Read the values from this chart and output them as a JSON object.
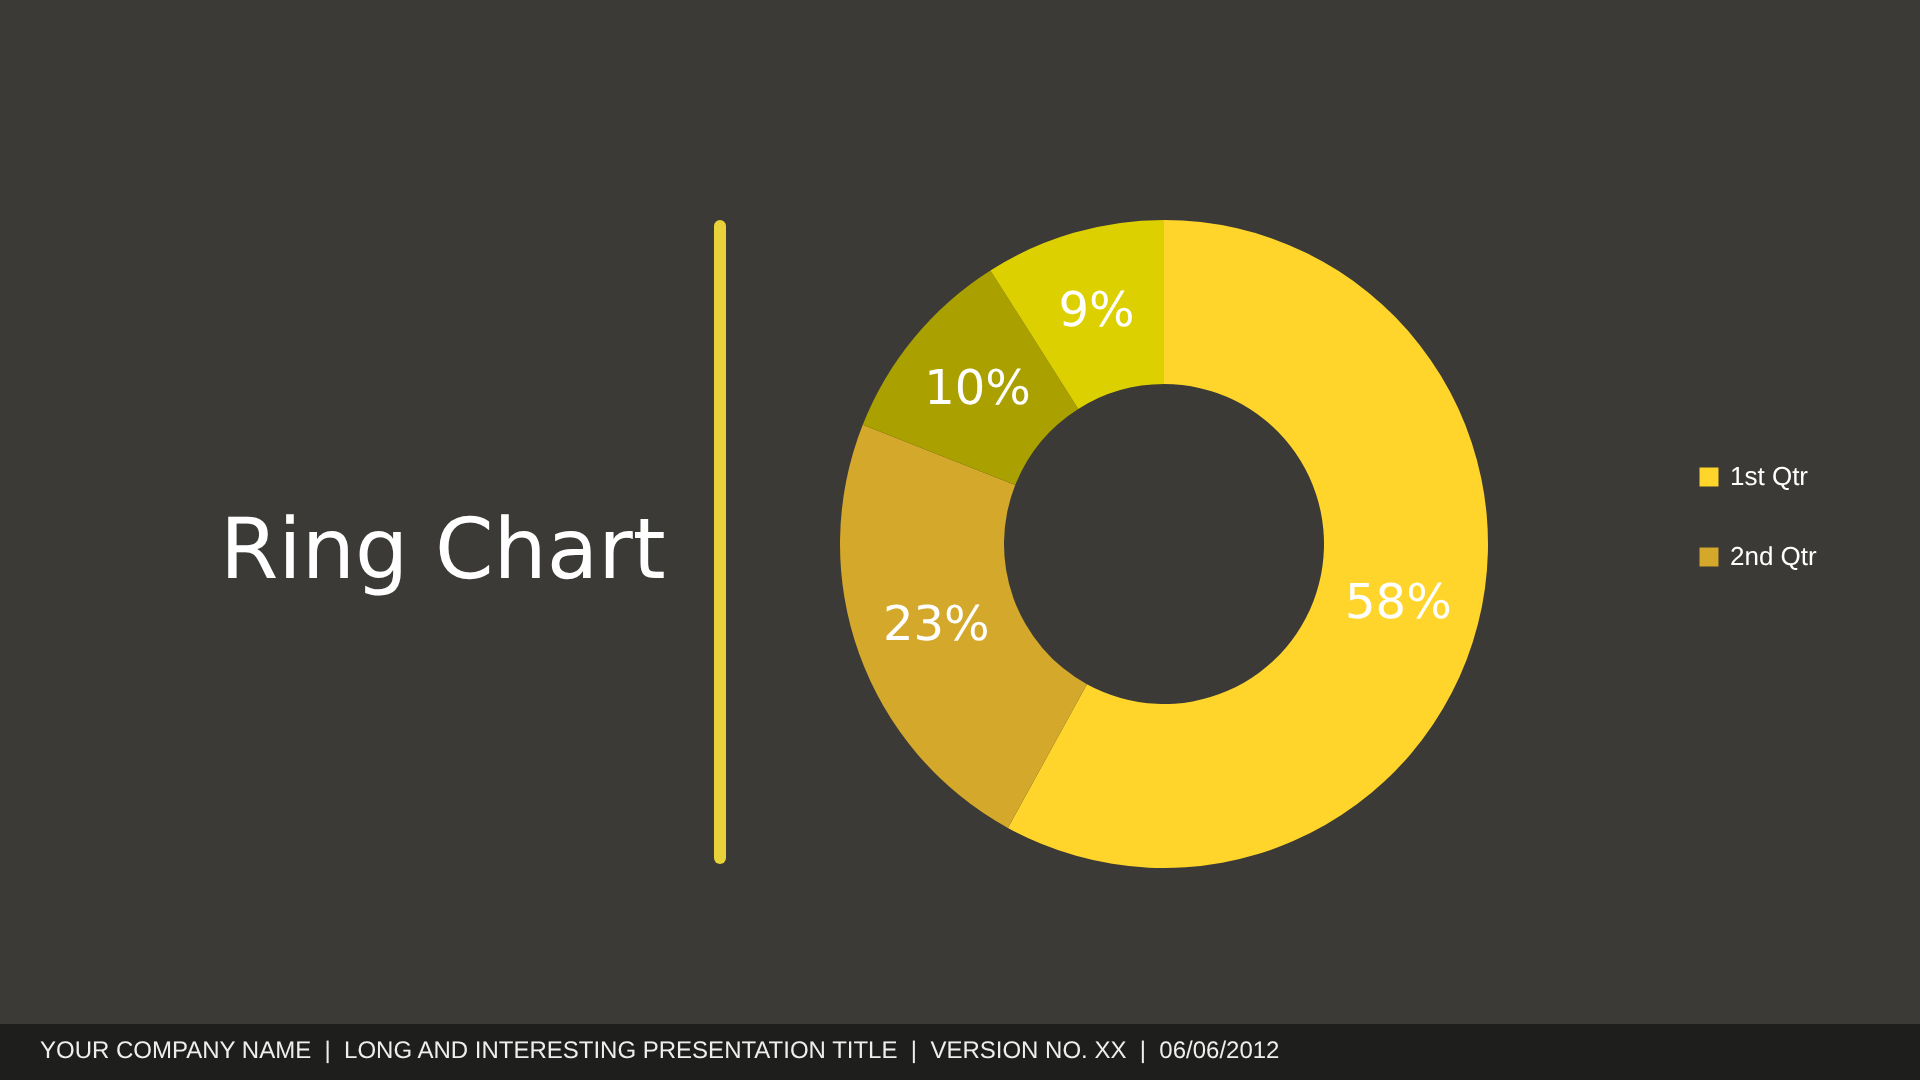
{
  "chart_data": {
    "type": "donut",
    "title": "Ring Chart",
    "categories": [
      "1st Qtr",
      "2nd Qtr",
      null,
      null
    ],
    "values": [
      58,
      23,
      10,
      9
    ],
    "colors": [
      "#ffd52b",
      "#d4a82a",
      "#aaa000",
      "#ddd000"
    ],
    "value_labels": [
      "58%",
      "23%",
      "10%",
      "9%"
    ],
    "legend": "right",
    "annotations": [
      "YOUR COMPANY NAME  |  LONG AND INTERESTING PRESENTATION TITLE  |  VERSION NO. XX  |  06/06/2012"
    ]
  }
}
